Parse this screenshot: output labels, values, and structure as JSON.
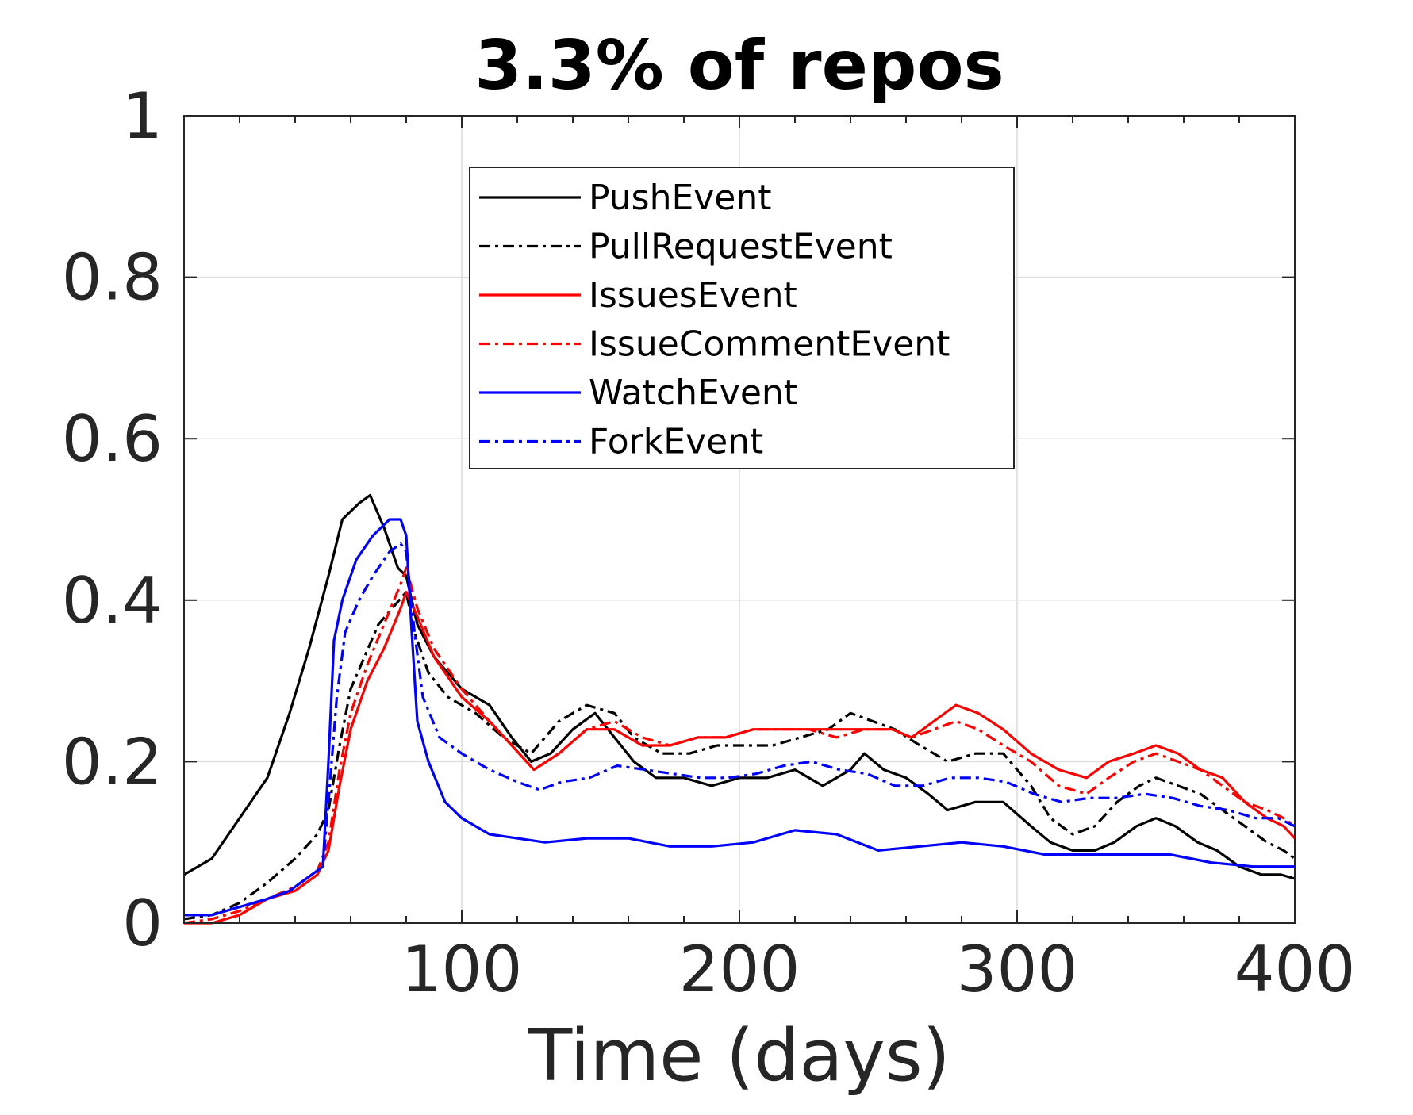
{
  "chart_data": {
    "type": "line",
    "title": "3.3% of repos",
    "xlabel": "Time (days)",
    "ylabel": "",
    "xlim": [
      0,
      400
    ],
    "ylim": [
      0,
      1
    ],
    "xticks": [
      100,
      200,
      300,
      400
    ],
    "xtick_labels": [
      "100",
      "200",
      "300",
      "400"
    ],
    "yticks": [
      0,
      0.2,
      0.4,
      0.6,
      0.8,
      1
    ],
    "ytick_labels": [
      "0",
      "0.2",
      "0.4",
      "0.6",
      "0.8",
      "1"
    ],
    "grid": true,
    "legend_position": "top-center",
    "series": [
      {
        "name": "PushEvent",
        "color": "#000000",
        "dash": "solid",
        "points": [
          [
            0,
            0.06
          ],
          [
            10,
            0.08
          ],
          [
            20,
            0.13
          ],
          [
            30,
            0.18
          ],
          [
            38,
            0.26
          ],
          [
            45,
            0.34
          ],
          [
            52,
            0.43
          ],
          [
            57,
            0.5
          ],
          [
            63,
            0.52
          ],
          [
            67,
            0.53
          ],
          [
            72,
            0.49
          ],
          [
            77,
            0.44
          ],
          [
            80,
            0.43
          ],
          [
            84,
            0.37
          ],
          [
            90,
            0.33
          ],
          [
            100,
            0.29
          ],
          [
            110,
            0.27
          ],
          [
            118,
            0.23
          ],
          [
            125,
            0.2
          ],
          [
            132,
            0.21
          ],
          [
            140,
            0.24
          ],
          [
            148,
            0.26
          ],
          [
            155,
            0.23
          ],
          [
            162,
            0.2
          ],
          [
            170,
            0.18
          ],
          [
            180,
            0.18
          ],
          [
            190,
            0.17
          ],
          [
            200,
            0.18
          ],
          [
            210,
            0.18
          ],
          [
            220,
            0.19
          ],
          [
            230,
            0.17
          ],
          [
            240,
            0.19
          ],
          [
            245,
            0.21
          ],
          [
            252,
            0.19
          ],
          [
            260,
            0.18
          ],
          [
            268,
            0.16
          ],
          [
            275,
            0.14
          ],
          [
            285,
            0.15
          ],
          [
            295,
            0.15
          ],
          [
            305,
            0.12
          ],
          [
            312,
            0.1
          ],
          [
            320,
            0.09
          ],
          [
            328,
            0.09
          ],
          [
            335,
            0.1
          ],
          [
            343,
            0.12
          ],
          [
            350,
            0.13
          ],
          [
            357,
            0.12
          ],
          [
            365,
            0.1
          ],
          [
            372,
            0.09
          ],
          [
            380,
            0.07
          ],
          [
            388,
            0.06
          ],
          [
            395,
            0.06
          ],
          [
            400,
            0.055
          ]
        ]
      },
      {
        "name": "PullRequestEvent",
        "color": "#000000",
        "dash": "dashdot",
        "points": [
          [
            0,
            0.005
          ],
          [
            10,
            0.01
          ],
          [
            20,
            0.025
          ],
          [
            30,
            0.05
          ],
          [
            40,
            0.08
          ],
          [
            48,
            0.11
          ],
          [
            52,
            0.14
          ],
          [
            56,
            0.22
          ],
          [
            60,
            0.29
          ],
          [
            65,
            0.33
          ],
          [
            70,
            0.37
          ],
          [
            75,
            0.39
          ],
          [
            80,
            0.41
          ],
          [
            83,
            0.36
          ],
          [
            88,
            0.31
          ],
          [
            95,
            0.28
          ],
          [
            105,
            0.26
          ],
          [
            115,
            0.23
          ],
          [
            125,
            0.21
          ],
          [
            135,
            0.25
          ],
          [
            145,
            0.27
          ],
          [
            155,
            0.26
          ],
          [
            162,
            0.23
          ],
          [
            172,
            0.21
          ],
          [
            182,
            0.21
          ],
          [
            192,
            0.22
          ],
          [
            202,
            0.22
          ],
          [
            212,
            0.22
          ],
          [
            222,
            0.23
          ],
          [
            232,
            0.24
          ],
          [
            240,
            0.26
          ],
          [
            248,
            0.25
          ],
          [
            256,
            0.24
          ],
          [
            265,
            0.22
          ],
          [
            275,
            0.2
          ],
          [
            285,
            0.21
          ],
          [
            295,
            0.21
          ],
          [
            305,
            0.17
          ],
          [
            312,
            0.13
          ],
          [
            320,
            0.11
          ],
          [
            328,
            0.12
          ],
          [
            336,
            0.15
          ],
          [
            344,
            0.17
          ],
          [
            350,
            0.18
          ],
          [
            358,
            0.17
          ],
          [
            366,
            0.16
          ],
          [
            374,
            0.14
          ],
          [
            382,
            0.12
          ],
          [
            390,
            0.1
          ],
          [
            396,
            0.09
          ],
          [
            400,
            0.08
          ]
        ]
      },
      {
        "name": "IssuesEvent",
        "color": "#ff0000",
        "dash": "solid",
        "points": [
          [
            0,
            0.0
          ],
          [
            10,
            0.0
          ],
          [
            20,
            0.01
          ],
          [
            30,
            0.03
          ],
          [
            40,
            0.04
          ],
          [
            48,
            0.06
          ],
          [
            52,
            0.09
          ],
          [
            56,
            0.17
          ],
          [
            60,
            0.24
          ],
          [
            66,
            0.3
          ],
          [
            72,
            0.34
          ],
          [
            78,
            0.39
          ],
          [
            80,
            0.41
          ],
          [
            84,
            0.38
          ],
          [
            90,
            0.33
          ],
          [
            100,
            0.28
          ],
          [
            110,
            0.25
          ],
          [
            118,
            0.22
          ],
          [
            126,
            0.19
          ],
          [
            135,
            0.21
          ],
          [
            145,
            0.24
          ],
          [
            155,
            0.24
          ],
          [
            165,
            0.22
          ],
          [
            175,
            0.22
          ],
          [
            185,
            0.23
          ],
          [
            195,
            0.23
          ],
          [
            205,
            0.24
          ],
          [
            215,
            0.24
          ],
          [
            225,
            0.24
          ],
          [
            235,
            0.24
          ],
          [
            245,
            0.24
          ],
          [
            255,
            0.24
          ],
          [
            262,
            0.23
          ],
          [
            270,
            0.25
          ],
          [
            278,
            0.27
          ],
          [
            286,
            0.26
          ],
          [
            295,
            0.24
          ],
          [
            305,
            0.21
          ],
          [
            315,
            0.19
          ],
          [
            325,
            0.18
          ],
          [
            333,
            0.2
          ],
          [
            342,
            0.21
          ],
          [
            350,
            0.22
          ],
          [
            358,
            0.21
          ],
          [
            366,
            0.19
          ],
          [
            374,
            0.18
          ],
          [
            382,
            0.15
          ],
          [
            390,
            0.13
          ],
          [
            396,
            0.12
          ],
          [
            400,
            0.105
          ]
        ]
      },
      {
        "name": "IssueCommentEvent",
        "color": "#ff0000",
        "dash": "dashdot",
        "points": [
          [
            0,
            0.0
          ],
          [
            10,
            0.005
          ],
          [
            20,
            0.015
          ],
          [
            30,
            0.03
          ],
          [
            40,
            0.045
          ],
          [
            48,
            0.065
          ],
          [
            52,
            0.1
          ],
          [
            56,
            0.19
          ],
          [
            60,
            0.26
          ],
          [
            66,
            0.32
          ],
          [
            72,
            0.37
          ],
          [
            78,
            0.42
          ],
          [
            80,
            0.44
          ],
          [
            84,
            0.39
          ],
          [
            90,
            0.34
          ],
          [
            100,
            0.29
          ],
          [
            110,
            0.25
          ],
          [
            118,
            0.22
          ],
          [
            126,
            0.19
          ],
          [
            135,
            0.21
          ],
          [
            145,
            0.24
          ],
          [
            155,
            0.25
          ],
          [
            165,
            0.23
          ],
          [
            175,
            0.22
          ],
          [
            185,
            0.23
          ],
          [
            195,
            0.23
          ],
          [
            205,
            0.24
          ],
          [
            215,
            0.24
          ],
          [
            225,
            0.24
          ],
          [
            235,
            0.23
          ],
          [
            245,
            0.24
          ],
          [
            255,
            0.24
          ],
          [
            262,
            0.23
          ],
          [
            270,
            0.24
          ],
          [
            278,
            0.25
          ],
          [
            286,
            0.24
          ],
          [
            295,
            0.22
          ],
          [
            305,
            0.2
          ],
          [
            315,
            0.17
          ],
          [
            325,
            0.16
          ],
          [
            333,
            0.18
          ],
          [
            342,
            0.2
          ],
          [
            350,
            0.21
          ],
          [
            358,
            0.2
          ],
          [
            366,
            0.19
          ],
          [
            374,
            0.17
          ],
          [
            382,
            0.15
          ],
          [
            390,
            0.14
          ],
          [
            396,
            0.13
          ],
          [
            400,
            0.12
          ]
        ]
      },
      {
        "name": "WatchEvent",
        "color": "#0000ff",
        "dash": "solid",
        "points": [
          [
            0,
            0.01
          ],
          [
            10,
            0.01
          ],
          [
            20,
            0.02
          ],
          [
            30,
            0.03
          ],
          [
            38,
            0.04
          ],
          [
            46,
            0.06
          ],
          [
            50,
            0.07
          ],
          [
            52,
            0.2
          ],
          [
            54,
            0.35
          ],
          [
            57,
            0.4
          ],
          [
            62,
            0.45
          ],
          [
            68,
            0.48
          ],
          [
            74,
            0.5
          ],
          [
            78,
            0.5
          ],
          [
            80,
            0.48
          ],
          [
            82,
            0.36
          ],
          [
            84,
            0.25
          ],
          [
            88,
            0.2
          ],
          [
            94,
            0.15
          ],
          [
            100,
            0.13
          ],
          [
            110,
            0.11
          ],
          [
            120,
            0.105
          ],
          [
            130,
            0.1
          ],
          [
            145,
            0.105
          ],
          [
            160,
            0.105
          ],
          [
            175,
            0.095
          ],
          [
            190,
            0.095
          ],
          [
            205,
            0.1
          ],
          [
            220,
            0.115
          ],
          [
            235,
            0.11
          ],
          [
            250,
            0.09
          ],
          [
            265,
            0.095
          ],
          [
            280,
            0.1
          ],
          [
            295,
            0.095
          ],
          [
            310,
            0.085
          ],
          [
            325,
            0.085
          ],
          [
            340,
            0.085
          ],
          [
            355,
            0.085
          ],
          [
            370,
            0.075
          ],
          [
            385,
            0.07
          ],
          [
            400,
            0.07
          ]
        ]
      },
      {
        "name": "ForkEvent",
        "color": "#0000ff",
        "dash": "dashdot",
        "points": [
          [
            0,
            0.01
          ],
          [
            10,
            0.01
          ],
          [
            20,
            0.02
          ],
          [
            30,
            0.03
          ],
          [
            38,
            0.04
          ],
          [
            46,
            0.06
          ],
          [
            50,
            0.07
          ],
          [
            52,
            0.15
          ],
          [
            55,
            0.28
          ],
          [
            58,
            0.36
          ],
          [
            63,
            0.4
          ],
          [
            68,
            0.43
          ],
          [
            74,
            0.46
          ],
          [
            78,
            0.47
          ],
          [
            80,
            0.46
          ],
          [
            83,
            0.36
          ],
          [
            86,
            0.28
          ],
          [
            92,
            0.23
          ],
          [
            100,
            0.21
          ],
          [
            110,
            0.19
          ],
          [
            120,
            0.175
          ],
          [
            128,
            0.165
          ],
          [
            136,
            0.175
          ],
          [
            146,
            0.18
          ],
          [
            156,
            0.195
          ],
          [
            166,
            0.19
          ],
          [
            176,
            0.185
          ],
          [
            186,
            0.18
          ],
          [
            196,
            0.18
          ],
          [
            206,
            0.185
          ],
          [
            216,
            0.195
          ],
          [
            226,
            0.2
          ],
          [
            236,
            0.19
          ],
          [
            246,
            0.185
          ],
          [
            256,
            0.17
          ],
          [
            266,
            0.17
          ],
          [
            276,
            0.18
          ],
          [
            286,
            0.18
          ],
          [
            296,
            0.175
          ],
          [
            306,
            0.16
          ],
          [
            316,
            0.15
          ],
          [
            326,
            0.155
          ],
          [
            336,
            0.155
          ],
          [
            346,
            0.16
          ],
          [
            356,
            0.155
          ],
          [
            366,
            0.145
          ],
          [
            376,
            0.14
          ],
          [
            386,
            0.13
          ],
          [
            394,
            0.13
          ],
          [
            400,
            0.12
          ]
        ]
      }
    ]
  }
}
